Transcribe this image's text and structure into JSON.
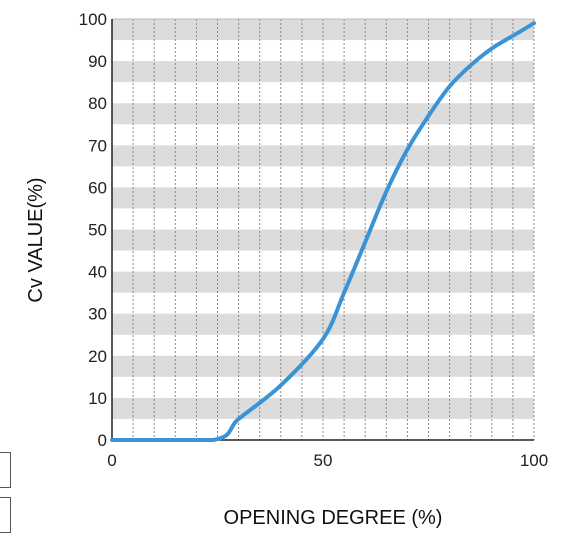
{
  "chart_data": {
    "type": "line",
    "title": "",
    "xlabel": "OPENING DEGREE (%)",
    "ylabel": "Cv VALUE(%)",
    "xlim": [
      0,
      100
    ],
    "ylim": [
      0,
      100
    ],
    "x_ticks": [
      0,
      50,
      100
    ],
    "y_ticks": [
      0,
      10,
      20,
      30,
      40,
      50,
      60,
      70,
      80,
      90,
      100
    ],
    "grid": true,
    "colors": {
      "line": "#3a93d6",
      "band": "#dcdcdc",
      "grid": "#888888"
    },
    "series": [
      {
        "x": [
          0,
          24,
          30,
          40,
          50,
          55,
          60,
          65,
          70,
          75,
          80,
          85,
          90,
          95,
          100
        ],
        "values": [
          0,
          0,
          5,
          13,
          24,
          35,
          47,
          59,
          69,
          77,
          84,
          89,
          93,
          96,
          99
        ]
      }
    ]
  }
}
